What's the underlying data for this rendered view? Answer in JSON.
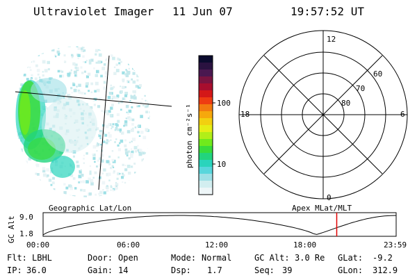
{
  "header": {
    "title": "Ultraviolet Imager",
    "date": "11 Jun 07",
    "time": "19:57:52 UT"
  },
  "colorbar": {
    "unit": "photon cm⁻²s⁻¹",
    "ticks": [
      "100",
      "10"
    ],
    "colors": [
      "#0b0b2e",
      "#2a1240",
      "#4a1850",
      "#7a1440",
      "#a80e2e",
      "#d41818",
      "#ee3c12",
      "#f27a10",
      "#f6a80c",
      "#f2d010",
      "#e6ee16",
      "#b2ee18",
      "#70ea1c",
      "#38dc3c",
      "#22d47e",
      "#2ad4bc",
      "#58d6dc",
      "#9ee0e6",
      "#d2eef0",
      "#eef6f8"
    ]
  },
  "polar": {
    "mlt_labels": {
      "top": "12",
      "left": "18",
      "right": "6",
      "bottom": "0"
    },
    "lat_labels": [
      "60",
      "70",
      "80"
    ]
  },
  "timeline": {
    "ylabel": "GC Alt",
    "yticks": [
      "9.0",
      "1.8"
    ],
    "left_caption": "Geographic Lat/Lon",
    "right_caption": "Apex MLat/MLT",
    "xticks": [
      "00:00",
      "06:00",
      "12:00",
      "18:00",
      "23:59"
    ],
    "marker_time_hours": 19.96
  },
  "info": {
    "row1": [
      {
        "key": "Flt:",
        "val": "LBHL"
      },
      {
        "key": "Door:",
        "val": "Open"
      },
      {
        "key": "Mode:",
        "val": "Normal"
      },
      {
        "key": "GC Alt:",
        "val": "3.0 Re"
      },
      {
        "key": "GLat:",
        "val": "-9.2"
      }
    ],
    "row2": [
      {
        "key": "IP:",
        "val": "36.0"
      },
      {
        "key": "Gain:",
        "val": "14"
      },
      {
        "key": "Dsp:",
        "val": "1.7"
      },
      {
        "key": "Seq:",
        "val": "39"
      },
      {
        "key": "GLon:",
        "val": "312.9"
      }
    ]
  }
}
